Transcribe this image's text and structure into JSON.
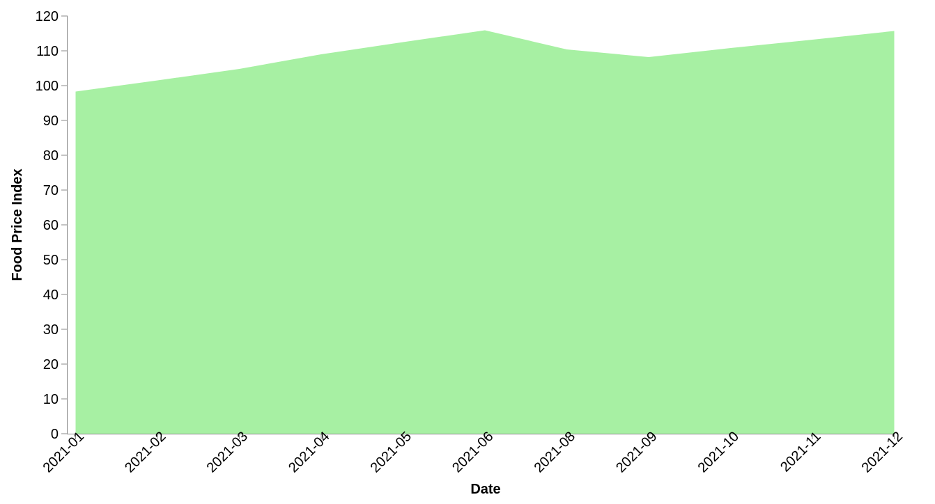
{
  "chart_data": {
    "type": "area",
    "xlabel": "Date",
    "ylabel": "Food Price Index",
    "x": [
      "2021-01",
      "2021-02",
      "2021-03",
      "2021-04",
      "2021-05",
      "2021-06",
      "2021-08",
      "2021-09",
      "2021-10",
      "2021-11",
      "2021-12"
    ],
    "values": [
      98.3,
      101.5,
      104.8,
      109.0,
      112.5,
      115.9,
      110.4,
      108.2,
      110.8,
      113.2,
      115.7
    ],
    "yticks": [
      "0",
      "10",
      "20",
      "30",
      "40",
      "50",
      "60",
      "70",
      "80",
      "90",
      "100",
      "110",
      "120"
    ],
    "ylim": [
      0,
      120
    ],
    "grid": false,
    "fill_color": "#a7f0a3",
    "axis_color": "#888888"
  }
}
